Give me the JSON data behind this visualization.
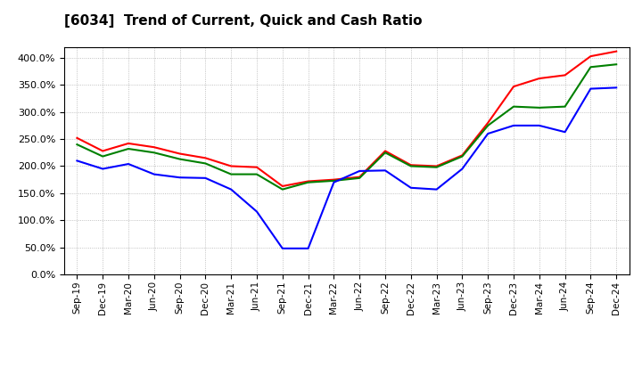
{
  "title": "[6034]  Trend of Current, Quick and Cash Ratio",
  "labels": [
    "Sep-19",
    "Dec-19",
    "Mar-20",
    "Jun-20",
    "Sep-20",
    "Dec-20",
    "Mar-21",
    "Jun-21",
    "Sep-21",
    "Dec-21",
    "Mar-22",
    "Jun-22",
    "Sep-22",
    "Dec-22",
    "Mar-23",
    "Jun-23",
    "Sep-23",
    "Dec-23",
    "Mar-24",
    "Jun-24",
    "Sep-24",
    "Dec-24"
  ],
  "current_ratio": [
    252,
    228,
    242,
    235,
    223,
    215,
    200,
    198,
    163,
    172,
    175,
    180,
    228,
    202,
    200,
    220,
    280,
    347,
    362,
    368,
    403,
    412
  ],
  "quick_ratio": [
    240,
    218,
    232,
    225,
    213,
    205,
    185,
    185,
    157,
    170,
    173,
    178,
    225,
    200,
    198,
    218,
    275,
    310,
    308,
    310,
    383,
    388
  ],
  "cash_ratio": [
    210,
    195,
    204,
    185,
    179,
    178,
    157,
    116,
    48,
    48,
    170,
    191,
    192,
    160,
    157,
    195,
    260,
    275,
    275,
    263,
    343,
    345
  ],
  "current_color": "#ff0000",
  "quick_color": "#008000",
  "cash_color": "#0000ff",
  "ylim": [
    0,
    420
  ],
  "yticks": [
    0,
    50,
    100,
    150,
    200,
    250,
    300,
    350,
    400
  ],
  "background_color": "#ffffff",
  "grid_color": "#b0b0b0"
}
